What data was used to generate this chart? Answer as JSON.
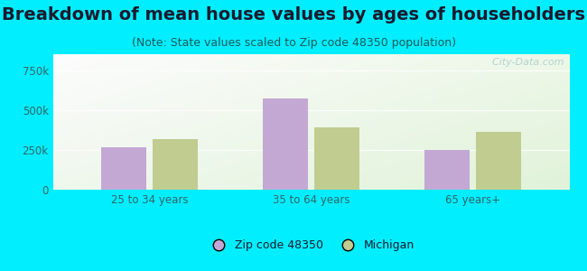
{
  "title": "Breakdown of mean house values by ages of householders",
  "subtitle": "(Note: State values scaled to Zip code 48350 population)",
  "categories": [
    "25 to 34 years",
    "35 to 64 years",
    "65 years+"
  ],
  "zip_values": [
    265000,
    570000,
    252000
  ],
  "michigan_values": [
    320000,
    390000,
    360000
  ],
  "ylim": [
    0,
    850000
  ],
  "yticks": [
    0,
    250000,
    500000,
    750000
  ],
  "ytick_labels": [
    "0",
    "250k",
    "500k",
    "750k"
  ],
  "zip_color": "#c4a8d4",
  "michigan_color": "#c0cc90",
  "background_outer": "#00eeff",
  "legend_zip_label": "Zip code 48350",
  "legend_michigan_label": "Michigan",
  "title_fontsize": 14,
  "subtitle_fontsize": 9,
  "title_color": "#1a1a2e",
  "subtitle_color": "#1a5a5a",
  "tick_color": "#336666",
  "watermark": "  City-Data.com"
}
